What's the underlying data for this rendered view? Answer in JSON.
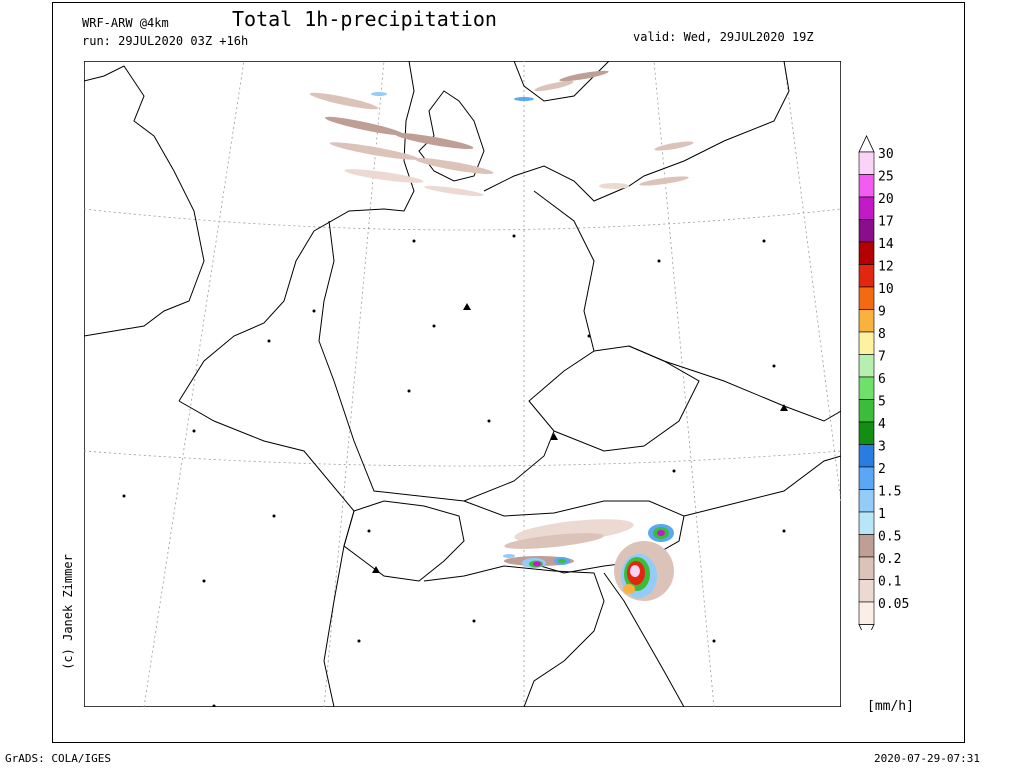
{
  "header": {
    "model": "WRF-ARW @4km",
    "run": "run: 29JUL2020 03Z +16h",
    "title": "Total 1h-precipitation",
    "valid": "valid: Wed, 29JUL2020 19Z"
  },
  "credit": "(c) Janek Zimmer",
  "footer": {
    "left": "GrADS: COLA/IGES",
    "right": "2020-07-29-07:31"
  },
  "legend": {
    "unit": "[mm/h]",
    "levels": [
      {
        "label": "30",
        "color": "#fbd3f7"
      },
      {
        "label": "25",
        "color": "#f25cf0"
      },
      {
        "label": "20",
        "color": "#c21ac7"
      },
      {
        "label": "17",
        "color": "#8a0e8c"
      },
      {
        "label": "14",
        "color": "#b30000"
      },
      {
        "label": "12",
        "color": "#e3270f"
      },
      {
        "label": "10",
        "color": "#f46a10"
      },
      {
        "label": "9",
        "color": "#fab13d"
      },
      {
        "label": "8",
        "color": "#fdf2a0"
      },
      {
        "label": "7",
        "color": "#b6efb0"
      },
      {
        "label": "6",
        "color": "#6ee16b"
      },
      {
        "label": "5",
        "color": "#3bbd3a"
      },
      {
        "label": "4",
        "color": "#128e12"
      },
      {
        "label": "3",
        "color": "#2a7de0"
      },
      {
        "label": "2",
        "color": "#5aa7f5"
      },
      {
        "label": "1.5",
        "color": "#93cbf9"
      },
      {
        "label": "1",
        "color": "#b7e6f9"
      },
      {
        "label": "0.5",
        "color": "#bf9f95"
      },
      {
        "label": "0.2",
        "color": "#dcc3ba"
      },
      {
        "label": "0.1",
        "color": "#ecdad2"
      },
      {
        "label": "0.05",
        "color": "#fbeee8"
      }
    ]
  },
  "map": {
    "border_color": "#000000",
    "graticule_color": "#9a9a9a"
  }
}
